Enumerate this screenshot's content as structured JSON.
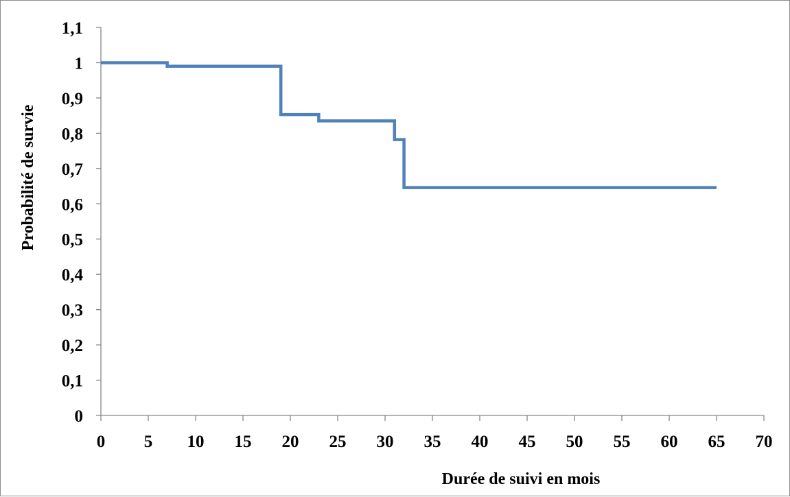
{
  "chart_data": {
    "type": "line",
    "line_style": "step",
    "title": "",
    "xlabel": "Durée de suivi en mois",
    "ylabel": "Probabilité de survie",
    "xlim": [
      0,
      70
    ],
    "ylim": [
      0,
      1.1
    ],
    "x_ticks": [
      "0",
      "5",
      "10",
      "15",
      "20",
      "25",
      "30",
      "35",
      "40",
      "45",
      "50",
      "55",
      "60",
      "65",
      "70"
    ],
    "y_ticks": [
      "0",
      "0,1",
      "0,2",
      "0,3",
      "0,4",
      "0,5",
      "0,6",
      "0,7",
      "0,8",
      "0,9",
      "1",
      "1,1"
    ],
    "grid": false,
    "legend": "none",
    "series": [
      {
        "color": "#4f81bd",
        "x": [
          0,
          7,
          19,
          23,
          31,
          32,
          65
        ],
        "y": [
          1.0,
          0.99,
          0.853,
          0.835,
          0.782,
          0.646,
          0.646
        ]
      }
    ]
  }
}
